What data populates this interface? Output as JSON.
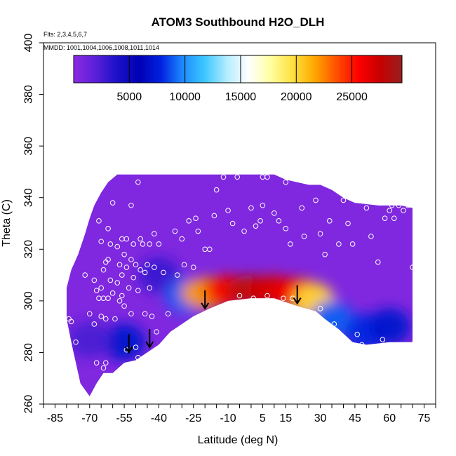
{
  "chart_data": {
    "type": "heatmap",
    "title": "ATOM3 Southbound H2O_DLH",
    "annotations": [
      "Flts: 2,3,4,5,6,7",
      "MMDD: 1001,1004,1006,1008,1011,1014"
    ],
    "xlabel": "Latitude (deg N)",
    "ylabel": "Theta (C)",
    "xlim": [
      -90,
      80
    ],
    "ylim": [
      260,
      400
    ],
    "x_ticks": [
      -85,
      -70,
      -55,
      -40,
      -25,
      -10,
      5,
      15,
      30,
      45,
      60,
      75
    ],
    "y_ticks": [
      260,
      280,
      300,
      320,
      340,
      360,
      380,
      400
    ],
    "colorbar": {
      "range": [
        0,
        29500
      ],
      "ticks": [
        5000,
        10000,
        15000,
        20000,
        25000
      ],
      "colors": [
        "#8b2be2",
        "#5a1fd8",
        "#1a10c8",
        "#0000b4",
        "#0022e0",
        "#1e8cff",
        "#3cc8ff",
        "#b4ecff",
        "#ffffff",
        "#ffffa0",
        "#ffe040",
        "#ffa800",
        "#ff5000",
        "#ff0000",
        "#c80000",
        "#962020"
      ]
    },
    "arrows": [
      {
        "lat": -53,
        "theta": 280
      },
      {
        "lat": -44,
        "theta": 282
      },
      {
        "lat": -20,
        "theta": 297
      },
      {
        "lat": 20,
        "theta": 299
      }
    ],
    "profile_top": [
      {
        "lat": -80,
        "theta": 305
      },
      {
        "lat": -78,
        "theta": 312
      },
      {
        "lat": -75,
        "theta": 318
      },
      {
        "lat": -72,
        "theta": 326
      },
      {
        "lat": -70,
        "theta": 332
      },
      {
        "lat": -68,
        "theta": 337
      },
      {
        "lat": -65,
        "theta": 342
      },
      {
        "lat": -62,
        "theta": 346
      },
      {
        "lat": -58,
        "theta": 349
      },
      {
        "lat": -40,
        "theta": 349
      },
      {
        "lat": -20,
        "theta": 349
      },
      {
        "lat": 0,
        "theta": 349
      },
      {
        "lat": 10,
        "theta": 349
      },
      {
        "lat": 15,
        "theta": 347
      },
      {
        "lat": 25,
        "theta": 345
      },
      {
        "lat": 30,
        "theta": 345
      },
      {
        "lat": 35,
        "theta": 343
      },
      {
        "lat": 40,
        "theta": 340
      },
      {
        "lat": 45,
        "theta": 338
      },
      {
        "lat": 55,
        "theta": 337
      },
      {
        "lat": 65,
        "theta": 337
      },
      {
        "lat": 70,
        "theta": 336
      }
    ],
    "profile_bottom": [
      {
        "lat": -80,
        "theta": 293
      },
      {
        "lat": -77,
        "theta": 280
      },
      {
        "lat": -74,
        "theta": 268
      },
      {
        "lat": -70,
        "theta": 263
      },
      {
        "lat": -67,
        "theta": 268
      },
      {
        "lat": -64,
        "theta": 272
      },
      {
        "lat": -60,
        "theta": 272
      },
      {
        "lat": -55,
        "theta": 276
      },
      {
        "lat": -50,
        "theta": 277
      },
      {
        "lat": -45,
        "theta": 280
      },
      {
        "lat": -40,
        "theta": 283
      },
      {
        "lat": -35,
        "theta": 288
      },
      {
        "lat": -30,
        "theta": 291
      },
      {
        "lat": -25,
        "theta": 294
      },
      {
        "lat": -18,
        "theta": 297
      },
      {
        "lat": -10,
        "theta": 300
      },
      {
        "lat": 0,
        "theta": 301
      },
      {
        "lat": 10,
        "theta": 301
      },
      {
        "lat": 20,
        "theta": 298
      },
      {
        "lat": 28,
        "theta": 296
      },
      {
        "lat": 32,
        "theta": 293
      },
      {
        "lat": 38,
        "theta": 289
      },
      {
        "lat": 44,
        "theta": 284
      },
      {
        "lat": 50,
        "theta": 283
      },
      {
        "lat": 60,
        "theta": 284
      },
      {
        "lat": 70,
        "theta": 284
      }
    ],
    "moist_core": [
      {
        "lat": -40,
        "theta": 310,
        "value": 3000
      },
      {
        "lat": -28,
        "theta": 302,
        "value": 9000
      },
      {
        "lat": -20,
        "theta": 303,
        "value": 22000
      },
      {
        "lat": -10,
        "theta": 304,
        "value": 26000
      },
      {
        "lat": 0,
        "theta": 304,
        "value": 28000
      },
      {
        "lat": 10,
        "theta": 304,
        "value": 27000
      },
      {
        "lat": 20,
        "theta": 303,
        "value": 26000
      },
      {
        "lat": 27,
        "theta": 300,
        "value": 20000
      },
      {
        "lat": 35,
        "theta": 293,
        "value": 9000
      },
      {
        "lat": 50,
        "theta": 288,
        "value": 8000
      },
      {
        "lat": 60,
        "theta": 290,
        "value": 7000
      },
      {
        "lat": -55,
        "theta": 284,
        "value": 7000
      },
      {
        "lat": -70,
        "theta": 285,
        "value": 2500
      }
    ],
    "obs_points": [
      {
        "lat": -80,
        "theta": 309
      },
      {
        "lat": -79,
        "theta": 293
      },
      {
        "lat": -78,
        "theta": 292
      },
      {
        "lat": -76,
        "theta": 284
      },
      {
        "lat": -72,
        "theta": 310
      },
      {
        "lat": -70,
        "theta": 295
      },
      {
        "lat": -68,
        "theta": 308
      },
      {
        "lat": -68,
        "theta": 291
      },
      {
        "lat": -67,
        "theta": 304
      },
      {
        "lat": -67,
        "theta": 276
      },
      {
        "lat": -66,
        "theta": 301
      },
      {
        "lat": -66,
        "theta": 331
      },
      {
        "lat": -65,
        "theta": 323
      },
      {
        "lat": -65,
        "theta": 305
      },
      {
        "lat": -65,
        "theta": 294
      },
      {
        "lat": -64,
        "theta": 312
      },
      {
        "lat": -64,
        "theta": 301
      },
      {
        "lat": -64,
        "theta": 274
      },
      {
        "lat": -63,
        "theta": 315
      },
      {
        "lat": -63,
        "theta": 293
      },
      {
        "lat": -63,
        "theta": 276
      },
      {
        "lat": -62,
        "theta": 328
      },
      {
        "lat": -62,
        "theta": 316
      },
      {
        "lat": -62,
        "theta": 301
      },
      {
        "lat": -61,
        "theta": 322
      },
      {
        "lat": -61,
        "theta": 308
      },
      {
        "lat": -60,
        "theta": 338
      },
      {
        "lat": -60,
        "theta": 303
      },
      {
        "lat": -59,
        "theta": 293
      },
      {
        "lat": -58,
        "theta": 321
      },
      {
        "lat": -58,
        "theta": 307
      },
      {
        "lat": -57,
        "theta": 314
      },
      {
        "lat": -57,
        "theta": 300
      },
      {
        "lat": -56,
        "theta": 324
      },
      {
        "lat": -56,
        "theta": 310
      },
      {
        "lat": -56,
        "theta": 302
      },
      {
        "lat": -55,
        "theta": 318
      },
      {
        "lat": -55,
        "theta": 298
      },
      {
        "lat": -54,
        "theta": 324
      },
      {
        "lat": -54,
        "theta": 313
      },
      {
        "lat": -54,
        "theta": 281
      },
      {
        "lat": -53,
        "theta": 305
      },
      {
        "lat": -52,
        "theta": 337
      },
      {
        "lat": -52,
        "theta": 316
      },
      {
        "lat": -52,
        "theta": 295
      },
      {
        "lat": -51,
        "theta": 322
      },
      {
        "lat": -51,
        "theta": 309
      },
      {
        "lat": -50,
        "theta": 314
      },
      {
        "lat": -50,
        "theta": 282
      },
      {
        "lat": -49,
        "theta": 346
      },
      {
        "lat": -49,
        "theta": 304
      },
      {
        "lat": -49,
        "theta": 278
      },
      {
        "lat": -48,
        "theta": 324
      },
      {
        "lat": -48,
        "theta": 312
      },
      {
        "lat": -47,
        "theta": 322
      },
      {
        "lat": -46,
        "theta": 311
      },
      {
        "lat": -46,
        "theta": 295
      },
      {
        "lat": -45,
        "theta": 314
      },
      {
        "lat": -44,
        "theta": 322
      },
      {
        "lat": -44,
        "theta": 305
      },
      {
        "lat": -43,
        "theta": 294
      },
      {
        "lat": -42,
        "theta": 313
      },
      {
        "lat": -42,
        "theta": 326
      },
      {
        "lat": -41,
        "theta": 288
      },
      {
        "lat": -40,
        "theta": 322
      },
      {
        "lat": -38,
        "theta": 311
      },
      {
        "lat": -36,
        "theta": 295
      },
      {
        "lat": -33,
        "theta": 327
      },
      {
        "lat": -32,
        "theta": 310
      },
      {
        "lat": -30,
        "theta": 324
      },
      {
        "lat": -29,
        "theta": 314
      },
      {
        "lat": -27,
        "theta": 331
      },
      {
        "lat": -25,
        "theta": 313
      },
      {
        "lat": -24,
        "theta": 332
      },
      {
        "lat": -23,
        "theta": 327
      },
      {
        "lat": -20,
        "theta": 320
      },
      {
        "lat": -18,
        "theta": 320
      },
      {
        "lat": -16,
        "theta": 333
      },
      {
        "lat": -15,
        "theta": 343
      },
      {
        "lat": -12,
        "theta": 348
      },
      {
        "lat": -10,
        "theta": 335
      },
      {
        "lat": -8,
        "theta": 330
      },
      {
        "lat": -6,
        "theta": 348
      },
      {
        "lat": -5,
        "theta": 302
      },
      {
        "lat": -3,
        "theta": 327
      },
      {
        "lat": 0,
        "theta": 336
      },
      {
        "lat": 1,
        "theta": 301
      },
      {
        "lat": 2,
        "theta": 329
      },
      {
        "lat": 4,
        "theta": 331
      },
      {
        "lat": 5,
        "theta": 337
      },
      {
        "lat": 5,
        "theta": 348
      },
      {
        "lat": 7,
        "theta": 348
      },
      {
        "lat": 7,
        "theta": 302
      },
      {
        "lat": 10,
        "theta": 334
      },
      {
        "lat": 12,
        "theta": 331
      },
      {
        "lat": 14,
        "theta": 301
      },
      {
        "lat": 15,
        "theta": 346
      },
      {
        "lat": 15,
        "theta": 328
      },
      {
        "lat": 17,
        "theta": 322
      },
      {
        "lat": 18,
        "theta": 301
      },
      {
        "lat": 22,
        "theta": 336
      },
      {
        "lat": 23,
        "theta": 325
      },
      {
        "lat": 24,
        "theta": 347
      },
      {
        "lat": 28,
        "theta": 339
      },
      {
        "lat": 30,
        "theta": 326
      },
      {
        "lat": 30,
        "theta": 297
      },
      {
        "lat": 32,
        "theta": 318
      },
      {
        "lat": 34,
        "theta": 331
      },
      {
        "lat": 36,
        "theta": 291
      },
      {
        "lat": 38,
        "theta": 322
      },
      {
        "lat": 40,
        "theta": 339
      },
      {
        "lat": 42,
        "theta": 330
      },
      {
        "lat": 44,
        "theta": 322
      },
      {
        "lat": 46,
        "theta": 287
      },
      {
        "lat": 48,
        "theta": 283
      },
      {
        "lat": 50,
        "theta": 336
      },
      {
        "lat": 52,
        "theta": 325
      },
      {
        "lat": 55,
        "theta": 315
      },
      {
        "lat": 56,
        "theta": 338
      },
      {
        "lat": 57,
        "theta": 285
      },
      {
        "lat": 58,
        "theta": 332
      },
      {
        "lat": 60,
        "theta": 335
      },
      {
        "lat": 61,
        "theta": 337
      },
      {
        "lat": 62,
        "theta": 332
      },
      {
        "lat": 64,
        "theta": 337
      },
      {
        "lat": 66,
        "theta": 335
      },
      {
        "lat": 68,
        "theta": 337
      },
      {
        "lat": 70,
        "theta": 313
      },
      {
        "lat": 71,
        "theta": 284
      }
    ]
  }
}
